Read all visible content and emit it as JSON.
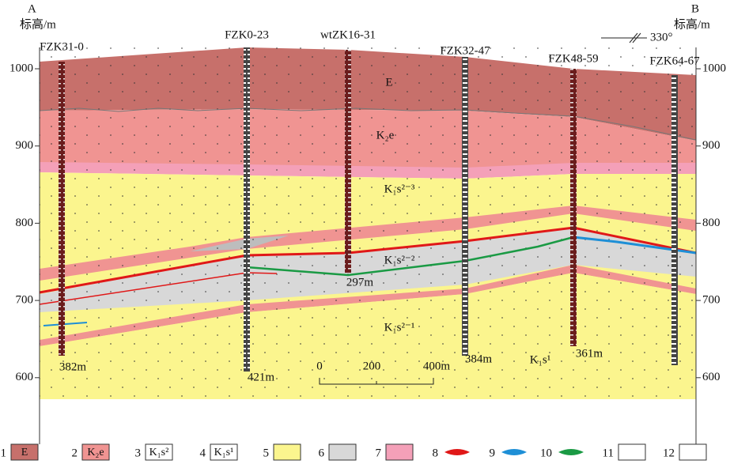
{
  "header": {
    "left_end": "A",
    "right_end": "B",
    "left_axis_title": "标高/m",
    "right_axis_title": "标高/m",
    "orientation": "330°"
  },
  "axis": {
    "ticks": [
      1000,
      900,
      800,
      700,
      600
    ]
  },
  "boreholes": [
    {
      "name": "FZK31-0",
      "depth": "382m"
    },
    {
      "name": "FZK0-23",
      "depth": "421m"
    },
    {
      "name": "wtZK16-31",
      "depth": "297m"
    },
    {
      "name": "FZK32-47",
      "depth": "384m"
    },
    {
      "name": "FZK48-59",
      "depth": "361m"
    },
    {
      "name": "FZK64-67"
    }
  ],
  "layers": [
    "E",
    "K₂e",
    "K₁s²⁻³",
    "K₁s²⁻²",
    "K₁s²⁻¹",
    "K₁s¹"
  ],
  "scale_bar": [
    "0",
    "200",
    "400m"
  ],
  "legend": [
    {
      "number": "1",
      "label": "E"
    },
    {
      "number": "2",
      "label": "K₂e"
    },
    {
      "number": "3",
      "label": "K₁s²"
    },
    {
      "number": "4",
      "label": "K₁s¹"
    },
    {
      "number": "5"
    },
    {
      "number": "6"
    },
    {
      "number": "7"
    },
    {
      "number": "8"
    },
    {
      "number": "9"
    },
    {
      "number": "10"
    },
    {
      "number": "11"
    },
    {
      "number": "12"
    }
  ]
}
